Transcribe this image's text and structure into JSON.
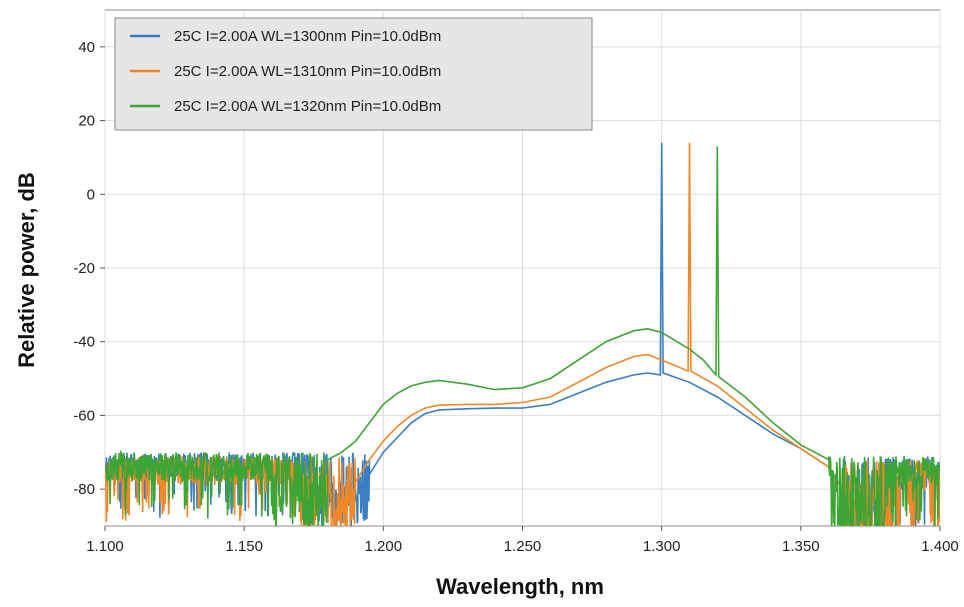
{
  "chart_data": {
    "type": "line",
    "title": "",
    "xlabel": "Wavelength, nm",
    "ylabel": "Relative power, dB",
    "xlim": [
      1.1,
      1.4
    ],
    "ylim": [
      -90,
      50
    ],
    "xticks": [
      "1.100",
      "1.150",
      "1.200",
      "1.250",
      "1.300",
      "1.350",
      "1.400"
    ],
    "yticks": [
      "-80",
      "-60",
      "-40",
      "-20",
      "0",
      "20",
      "40"
    ],
    "grid": true,
    "legend_position": "top-left",
    "series": [
      {
        "name": "25C I=2.00A WL=1300nm Pin=10.0dBm",
        "color": "#3a7fc1",
        "noise_floor_db": -73,
        "noise_range_x": [
          1.1,
          1.195
        ],
        "points": [
          [
            1.195,
            -76
          ],
          [
            1.2,
            -70
          ],
          [
            1.205,
            -66
          ],
          [
            1.21,
            -62
          ],
          [
            1.215,
            -59.5
          ],
          [
            1.22,
            -58.5
          ],
          [
            1.23,
            -58.2
          ],
          [
            1.24,
            -58
          ],
          [
            1.25,
            -58
          ],
          [
            1.26,
            -57
          ],
          [
            1.27,
            -54
          ],
          [
            1.28,
            -51
          ],
          [
            1.29,
            -49
          ],
          [
            1.295,
            -48.5
          ],
          [
            1.2995,
            -49
          ],
          [
            1.3,
            14
          ],
          [
            1.3005,
            -48.5
          ],
          [
            1.31,
            -51
          ],
          [
            1.32,
            -55
          ],
          [
            1.33,
            -60
          ],
          [
            1.34,
            -65
          ],
          [
            1.35,
            -69
          ],
          [
            1.36,
            -74
          ],
          [
            1.365,
            -80
          ]
        ],
        "noise_range_x_right": [
          1.365,
          1.4
        ]
      },
      {
        "name": "25C I=2.00A WL=1310nm Pin=10.0dBm",
        "color": "#f0882a",
        "noise_floor_db": -74,
        "noise_range_x": [
          1.1,
          1.19
        ],
        "points": [
          [
            1.19,
            -78
          ],
          [
            1.195,
            -72
          ],
          [
            1.2,
            -67
          ],
          [
            1.205,
            -63
          ],
          [
            1.21,
            -60
          ],
          [
            1.215,
            -58
          ],
          [
            1.22,
            -57.2
          ],
          [
            1.23,
            -57
          ],
          [
            1.24,
            -57
          ],
          [
            1.25,
            -56.5
          ],
          [
            1.26,
            -55
          ],
          [
            1.27,
            -51
          ],
          [
            1.28,
            -47
          ],
          [
            1.29,
            -44
          ],
          [
            1.295,
            -43.5
          ],
          [
            1.3,
            -45
          ],
          [
            1.305,
            -46.5
          ],
          [
            1.3095,
            -48
          ],
          [
            1.31,
            14
          ],
          [
            1.3105,
            -48
          ],
          [
            1.32,
            -52
          ],
          [
            1.33,
            -58
          ],
          [
            1.34,
            -64
          ],
          [
            1.35,
            -69
          ],
          [
            1.36,
            -74
          ],
          [
            1.365,
            -80
          ]
        ],
        "noise_range_x_right": [
          1.365,
          1.4
        ]
      },
      {
        "name": "25C I=2.00A WL=1320nm Pin=10.0dBm",
        "color": "#3ea535",
        "noise_floor_db": -73,
        "noise_range_x": [
          1.1,
          1.18
        ],
        "points": [
          [
            1.18,
            -72
          ],
          [
            1.185,
            -70
          ],
          [
            1.19,
            -67
          ],
          [
            1.195,
            -62
          ],
          [
            1.2,
            -57
          ],
          [
            1.205,
            -54
          ],
          [
            1.21,
            -52
          ],
          [
            1.215,
            -51
          ],
          [
            1.22,
            -50.5
          ],
          [
            1.23,
            -51.5
          ],
          [
            1.24,
            -53
          ],
          [
            1.25,
            -52.5
          ],
          [
            1.26,
            -50
          ],
          [
            1.27,
            -45
          ],
          [
            1.28,
            -40
          ],
          [
            1.29,
            -37
          ],
          [
            1.295,
            -36.5
          ],
          [
            1.3,
            -37.5
          ],
          [
            1.31,
            -42
          ],
          [
            1.315,
            -45
          ],
          [
            1.3195,
            -49
          ],
          [
            1.32,
            13
          ],
          [
            1.3205,
            -49.5
          ],
          [
            1.33,
            -55
          ],
          [
            1.34,
            -62
          ],
          [
            1.35,
            -68
          ],
          [
            1.36,
            -72
          ]
        ],
        "noise_range_x_right": [
          1.36,
          1.4
        ]
      }
    ]
  }
}
